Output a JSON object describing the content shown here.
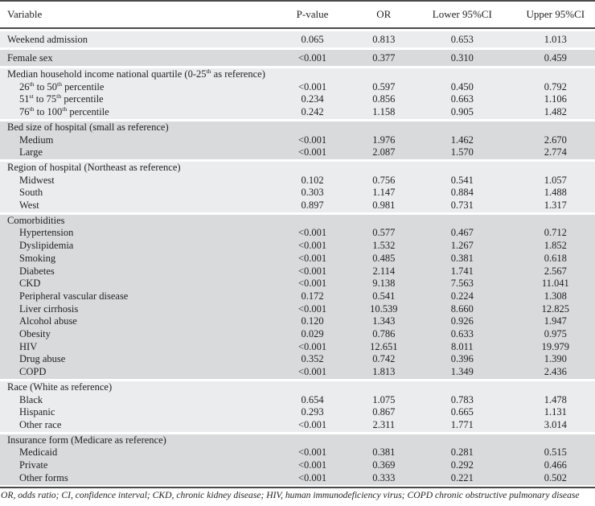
{
  "page": {
    "footnote": "OR, odds ratio; CI, confidence interval; CKD, chronic kidney disease; HIV, human immunodeficiency virus; COPD chronic obstructive pulmonary disease"
  },
  "table": {
    "columns": [
      "Variable",
      "P-value",
      "OR",
      "Lower 95%CI",
      "Upper 95%CI"
    ],
    "colors": {
      "light_row": "#ebecee",
      "dark_row": "#d9dadc",
      "rule": "#4a4a4a",
      "text": "#1f1f1f"
    },
    "sections": [
      {
        "shade": "light",
        "solo": true,
        "rows": [
          {
            "label": "Weekend admission",
            "indent": 0,
            "values": [
              "0.065",
              "0.813",
              "0.653",
              "1.013"
            ]
          }
        ]
      },
      {
        "shade": "dark",
        "solo": true,
        "rows": [
          {
            "label": "Female sex",
            "indent": 0,
            "values": [
              "<0.001",
              "0.377",
              "0.310",
              "0.459"
            ]
          }
        ]
      },
      {
        "shade": "light",
        "solo": false,
        "rows": [
          {
            "label": "Median household income national quartile (0-25^th as reference)",
            "indent": 0,
            "values": [
              "",
              "",
              "",
              ""
            ]
          },
          {
            "label": "26^th to 50^th percentile",
            "indent": 1,
            "values": [
              "<0.001",
              "0.597",
              "0.450",
              "0.792"
            ]
          },
          {
            "label": "51^st to 75^th percentile",
            "indent": 1,
            "values": [
              "0.234",
              "0.856",
              "0.663",
              "1.106"
            ]
          },
          {
            "label": "76^th to 100^th percentile",
            "indent": 1,
            "values": [
              "0.242",
              "1.158",
              "0.905",
              "1.482"
            ]
          }
        ]
      },
      {
        "shade": "dark",
        "solo": false,
        "rows": [
          {
            "label": "Bed size of hospital (small as reference)",
            "indent": 0,
            "values": [
              "",
              "",
              "",
              ""
            ]
          },
          {
            "label": "Medium",
            "indent": 1,
            "values": [
              "<0.001",
              "1.976",
              "1.462",
              "2.670"
            ]
          },
          {
            "label": "Large",
            "indent": 1,
            "values": [
              "<0.001",
              "2.087",
              "1.570",
              "2.774"
            ]
          }
        ]
      },
      {
        "shade": "light",
        "solo": false,
        "rows": [
          {
            "label": "Region of hospital (Northeast as reference)",
            "indent": 0,
            "values": [
              "",
              "",
              "",
              ""
            ]
          },
          {
            "label": "Midwest",
            "indent": 1,
            "values": [
              "0.102",
              "0.756",
              "0.541",
              "1.057"
            ]
          },
          {
            "label": "South",
            "indent": 1,
            "values": [
              "0.303",
              "1.147",
              "0.884",
              "1.488"
            ]
          },
          {
            "label": "West",
            "indent": 1,
            "values": [
              "0.897",
              "0.981",
              "0.731",
              "1.317"
            ]
          }
        ]
      },
      {
        "shade": "dark",
        "solo": false,
        "rows": [
          {
            "label": "Comorbidities",
            "indent": 0,
            "values": [
              "",
              "",
              "",
              ""
            ]
          },
          {
            "label": "Hypertension",
            "indent": 1,
            "values": [
              "<0.001",
              "0.577",
              "0.467",
              "0.712"
            ]
          },
          {
            "label": "Dyslipidemia",
            "indent": 1,
            "values": [
              "<0.001",
              "1.532",
              "1.267",
              "1.852"
            ]
          },
          {
            "label": "Smoking",
            "indent": 1,
            "values": [
              "<0.001",
              "0.485",
              "0.381",
              "0.618"
            ]
          },
          {
            "label": "Diabetes",
            "indent": 1,
            "values": [
              "<0.001",
              "2.114",
              "1.741",
              "2.567"
            ]
          },
          {
            "label": "CKD",
            "indent": 1,
            "values": [
              "<0.001",
              "9.138",
              "7.563",
              "11.041"
            ]
          },
          {
            "label": "Peripheral vascular disease",
            "indent": 1,
            "values": [
              "0.172",
              "0.541",
              "0.224",
              "1.308"
            ]
          },
          {
            "label": "Liver cirrhosis",
            "indent": 1,
            "values": [
              "<0.001",
              "10.539",
              "8.660",
              "12.825"
            ]
          },
          {
            "label": "Alcohol abuse",
            "indent": 1,
            "values": [
              "0.120",
              "1.343",
              "0.926",
              "1.947"
            ]
          },
          {
            "label": "Obesity",
            "indent": 1,
            "values": [
              "0.029",
              "0.786",
              "0.633",
              "0.975"
            ]
          },
          {
            "label": "HIV",
            "indent": 1,
            "values": [
              "<0.001",
              "12.651",
              "8.011",
              "19.979"
            ]
          },
          {
            "label": "Drug abuse",
            "indent": 1,
            "values": [
              "0.352",
              "0.742",
              "0.396",
              "1.390"
            ]
          },
          {
            "label": "COPD",
            "indent": 1,
            "values": [
              "<0.001",
              "1.813",
              "1.349",
              "2.436"
            ]
          }
        ]
      },
      {
        "shade": "light",
        "solo": false,
        "rows": [
          {
            "label": "Race (White as reference)",
            "indent": 0,
            "values": [
              "",
              "",
              "",
              ""
            ]
          },
          {
            "label": "Black",
            "indent": 1,
            "values": [
              "0.654",
              "1.075",
              "0.783",
              "1.478"
            ]
          },
          {
            "label": "Hispanic",
            "indent": 1,
            "values": [
              "0.293",
              "0.867",
              "0.665",
              "1.131"
            ]
          },
          {
            "label": "Other race",
            "indent": 1,
            "values": [
              "<0.001",
              "2.311",
              "1.771",
              "3.014"
            ]
          }
        ]
      },
      {
        "shade": "dark",
        "solo": false,
        "rows": [
          {
            "label": "Insurance form (Medicare as reference)",
            "indent": 0,
            "values": [
              "",
              "",
              "",
              ""
            ]
          },
          {
            "label": "Medicaid",
            "indent": 1,
            "values": [
              "<0.001",
              "0.381",
              "0.281",
              "0.515"
            ]
          },
          {
            "label": "Private",
            "indent": 1,
            "values": [
              "<0.001",
              "0.369",
              "0.292",
              "0.466"
            ]
          },
          {
            "label": "Other forms",
            "indent": 1,
            "values": [
              "<0.001",
              "0.333",
              "0.221",
              "0.502"
            ]
          }
        ]
      }
    ]
  }
}
